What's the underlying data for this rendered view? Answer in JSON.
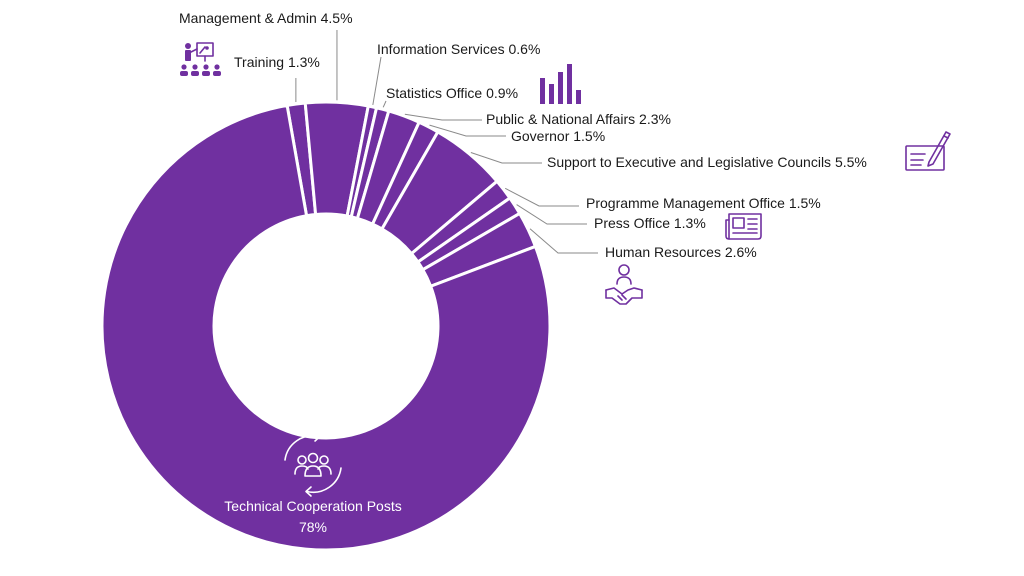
{
  "chart_data": {
    "type": "pie",
    "donut": true,
    "color": "#7030a0",
    "slices": [
      {
        "label": "Training",
        "value": 1.3,
        "text": "Training 1.3%",
        "icon": "presentation-icon"
      },
      {
        "label": "Management & Admin",
        "value": 4.5,
        "text": "Management & Admin 4.5%",
        "icon": ""
      },
      {
        "label": "Information Services",
        "value": 0.6,
        "text": "Information Services 0.6%",
        "icon": ""
      },
      {
        "label": "Statistics Office",
        "value": 0.9,
        "text": "Statistics Office 0.9%",
        "icon": "bar-chart-icon"
      },
      {
        "label": "Public & National Affairs",
        "value": 2.3,
        "text": "Public & National Affairs 2.3%",
        "icon": ""
      },
      {
        "label": "Governor",
        "value": 1.5,
        "text": "Governor 1.5%",
        "icon": ""
      },
      {
        "label": "Support to Executive and Legislative Councils",
        "value": 5.5,
        "text": "Support to Executive and Legislative Councils 5.5%",
        "icon": "pen-document-icon"
      },
      {
        "label": "Programme Management Office",
        "value": 1.5,
        "text": "Programme Management Office 1.5%",
        "icon": ""
      },
      {
        "label": "Press Office",
        "value": 1.3,
        "text": "Press Office 1.3%",
        "icon": "newspaper-icon"
      },
      {
        "label": "Human Resources",
        "value": 2.6,
        "text": "Human Resources 2.6%",
        "icon": "handshake-icon"
      },
      {
        "label": "Technical Cooperation Posts",
        "value": 78,
        "text": "Technical Cooperation Posts",
        "value_text": "78%",
        "icon": "team-cycle-icon"
      }
    ]
  }
}
